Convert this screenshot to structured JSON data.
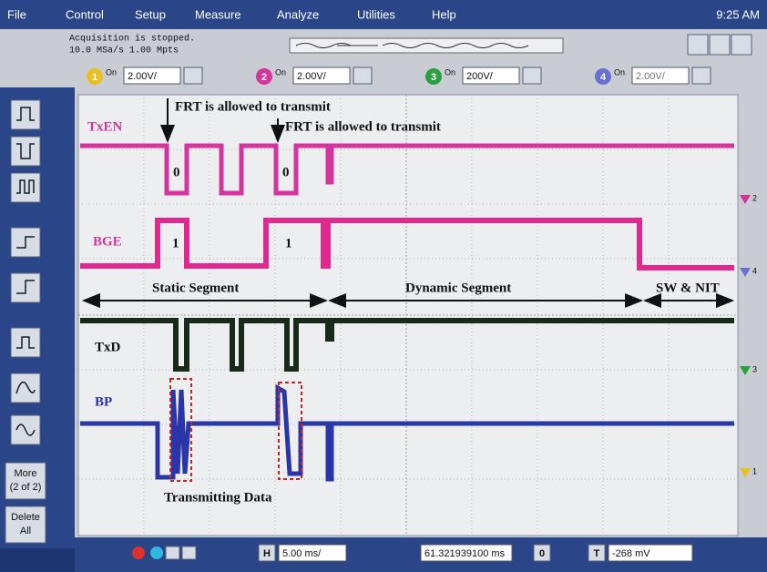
{
  "menu": [
    "File",
    "Control",
    "Setup",
    "Measure",
    "Analyze",
    "Utilities",
    "Help"
  ],
  "clock": "9:25 AM",
  "status": {
    "line1": "Acquisition is stopped.",
    "line2": "10.0 MSa/s   1.00 Mpts"
  },
  "channels": [
    {
      "number": "1",
      "state": "On",
      "scale": "2.00V/"
    },
    {
      "number": "2",
      "state": "On",
      "scale": "2.00V/"
    },
    {
      "number": "3",
      "state": "On",
      "scale": "200V/"
    },
    {
      "number": "4",
      "state": "On",
      "scale": "2.00V/"
    }
  ],
  "side_buttons": {
    "more": [
      "More",
      "(2 of 2)"
    ],
    "delete": [
      "Delete",
      "All"
    ]
  },
  "traces": [
    "TxEN",
    "BGE",
    "TxD",
    "BP"
  ],
  "annotations": {
    "frt_1": "FRT is allowed to transmit",
    "frt_2": "FRT is allowed to transmit",
    "txen_bits": [
      "0",
      "0"
    ],
    "bge_bits": [
      "1",
      "1"
    ],
    "segments": [
      "Static Segment",
      "Dynamic Segment",
      "SW & NIT"
    ],
    "transmitting": "Transmitting Data"
  },
  "markers": [
    "2",
    "4",
    "3",
    "1"
  ],
  "bottom": {
    "h": "H",
    "timebase": "5.00 ms/",
    "position": "61.321939100 ms",
    "zero": "0",
    "t": "T",
    "trigger_level": "-268 mV"
  }
}
